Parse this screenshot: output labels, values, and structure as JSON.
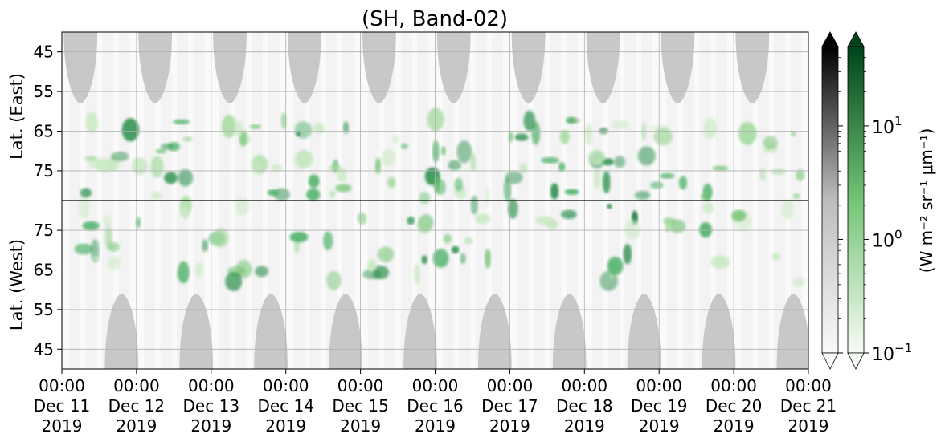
{
  "chart_data": {
    "type": "heatmap",
    "title": "(SH, Band-02)",
    "panels": [
      {
        "name": "east",
        "ylabel": "Lat. (East)",
        "yticks": [
          "45",
          "55",
          "65",
          "75"
        ],
        "yrange": [
          40,
          82.5
        ],
        "y_direction": "latitude increases downward toward the divider line"
      },
      {
        "name": "west",
        "ylabel": "Lat. (West)",
        "yticks": [
          "75",
          "65",
          "55",
          "45"
        ],
        "yrange": [
          82.5,
          40
        ],
        "y_direction": "latitude decreases downward from the divider line"
      }
    ],
    "x": {
      "tick_labels": [
        [
          "00:00",
          "Dec 11",
          "2019"
        ],
        [
          "00:00",
          "Dec 12",
          "2019"
        ],
        [
          "00:00",
          "Dec 13",
          "2019"
        ],
        [
          "00:00",
          "Dec 14",
          "2019"
        ],
        [
          "00:00",
          "Dec 15",
          "2019"
        ],
        [
          "00:00",
          "Dec 16",
          "2019"
        ],
        [
          "00:00",
          "Dec 17",
          "2019"
        ],
        [
          "00:00",
          "Dec 18",
          "2019"
        ],
        [
          "00:00",
          "Dec 19",
          "2019"
        ],
        [
          "00:00",
          "Dec 20",
          "2019"
        ],
        [
          "00:00",
          "Dec 21",
          "2019"
        ]
      ],
      "range_days": [
        0,
        10
      ]
    },
    "colorbars": [
      {
        "name": "gray",
        "scale": "log",
        "range": [
          0.1,
          50
        ],
        "extend": "both",
        "colors": [
          "#f7f7f7",
          "#000000"
        ]
      },
      {
        "name": "green",
        "scale": "log",
        "range": [
          0.1,
          50
        ],
        "extend": "both",
        "colors": [
          "#f7fcf5",
          "#00441b"
        ]
      }
    ],
    "colorbar_ticks": [
      {
        "base": "10",
        "exp": "1",
        "value": 10
      },
      {
        "base": "10",
        "exp": "0",
        "value": 1
      },
      {
        "base": "10",
        "exp": "−1",
        "value": 0.1
      }
    ],
    "colorbar_label": "(W m⁻² sr⁻¹ μm⁻¹)",
    "grid": true,
    "night_mask_color": "#c8c8c8",
    "night_mask_east_centers_day": [
      0.25,
      1.25,
      2.25,
      3.25,
      4.25,
      5.25,
      6.25,
      7.25,
      8.25,
      9.25
    ],
    "night_mask_west_centers_day": [
      0.8,
      1.8,
      2.8,
      3.8,
      4.8,
      5.8,
      6.8,
      7.8,
      8.8,
      9.8
    ],
    "aurora_activity_center_day": [
      0.7,
      1.7,
      2.6,
      3.6,
      4.6,
      5.4,
      6.4,
      7.4,
      8.4,
      9.5
    ],
    "aurora_peak_intensity": [
      30,
      15,
      12,
      25,
      20,
      18,
      22,
      30,
      8,
      5
    ]
  }
}
